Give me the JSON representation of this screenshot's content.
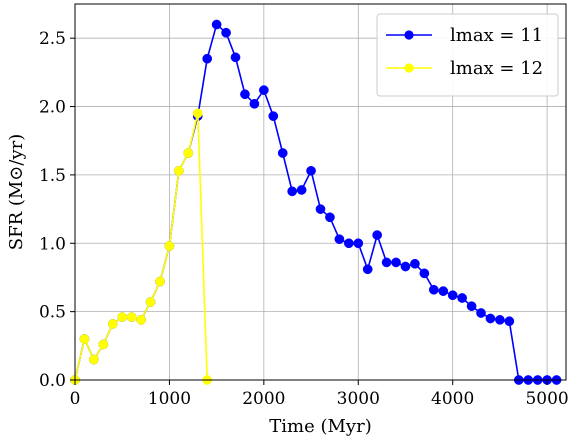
{
  "chart_data": {
    "type": "line",
    "title": "",
    "xlabel": "Time (Myr)",
    "ylabel": "SFR (M⊙/yr)",
    "xlim": [
      0,
      5200
    ],
    "ylim": [
      0,
      2.75
    ],
    "xticks": [
      0,
      1000,
      2000,
      3000,
      4000,
      5000
    ],
    "yticks": [
      0.0,
      0.5,
      1.0,
      1.5,
      2.0,
      2.5
    ],
    "xtick_labels": [
      "0",
      "1000",
      "2000",
      "3000",
      "4000",
      "5000"
    ],
    "ytick_labels": [
      "0.0",
      "0.5",
      "1.0",
      "1.5",
      "2.0",
      "2.5"
    ],
    "grid": true,
    "legend_position": "top-right",
    "series": [
      {
        "name": "lmax = 11",
        "color": "#0000ff",
        "marker": "circle",
        "x": [
          0,
          100,
          200,
          300,
          400,
          500,
          600,
          700,
          800,
          900,
          1000,
          1100,
          1200,
          1300,
          1400,
          1500,
          1600,
          1700,
          1800,
          1900,
          2000,
          2100,
          2200,
          2300,
          2400,
          2500,
          2600,
          2700,
          2800,
          2900,
          3000,
          3100,
          3200,
          3300,
          3400,
          3500,
          3600,
          3700,
          3800,
          3900,
          4000,
          4100,
          4200,
          4300,
          4400,
          4500,
          4600,
          4700,
          4800,
          4900,
          5000,
          5100
        ],
        "y": [
          0.0,
          0.3,
          0.15,
          0.26,
          0.41,
          0.46,
          0.46,
          0.44,
          0.57,
          0.72,
          0.98,
          1.53,
          1.66,
          1.93,
          2.35,
          2.6,
          2.54,
          2.36,
          2.09,
          2.02,
          2.12,
          1.93,
          1.66,
          1.38,
          1.39,
          1.53,
          1.25,
          1.19,
          1.03,
          1.0,
          1.0,
          0.81,
          1.06,
          0.86,
          0.86,
          0.83,
          0.85,
          0.78,
          0.66,
          0.65,
          0.62,
          0.6,
          0.54,
          0.49,
          0.45,
          0.44,
          0.43,
          0.0,
          0.0,
          0.0,
          0.0,
          0.0
        ]
      },
      {
        "name": "lmax = 12",
        "color": "#ffff00",
        "marker": "circle",
        "x": [
          0,
          100,
          200,
          300,
          400,
          500,
          600,
          700,
          800,
          900,
          1000,
          1100,
          1200,
          1300,
          1400
        ],
        "y": [
          0.0,
          0.3,
          0.15,
          0.26,
          0.41,
          0.46,
          0.46,
          0.44,
          0.57,
          0.72,
          0.98,
          1.53,
          1.66,
          1.95,
          0.0
        ]
      }
    ]
  }
}
